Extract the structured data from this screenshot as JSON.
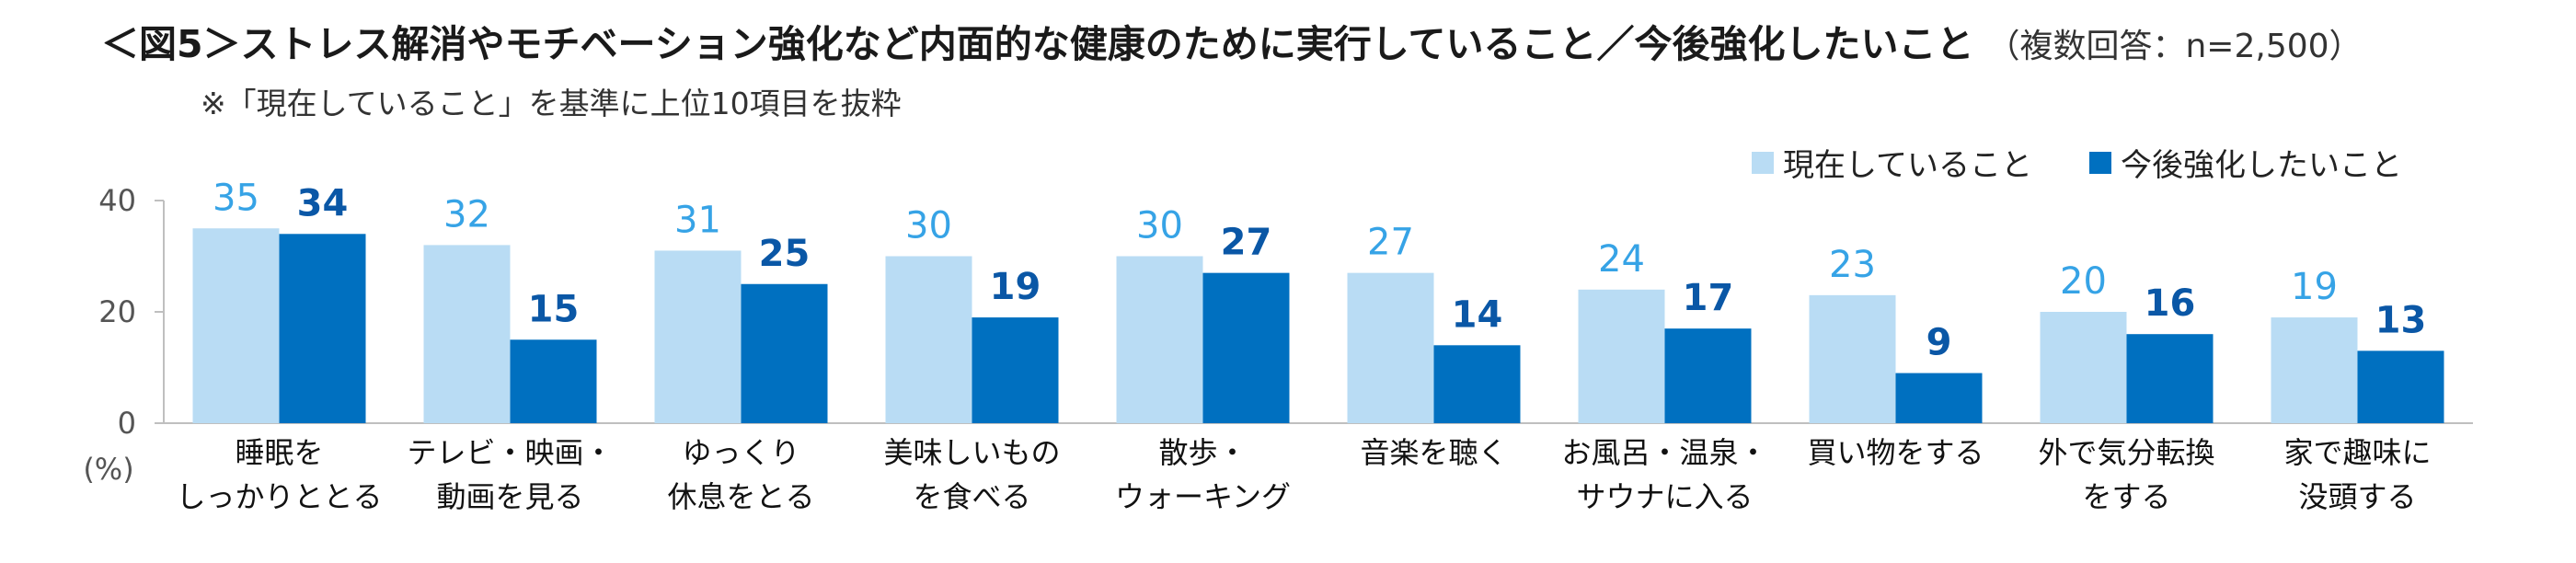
{
  "header": {
    "title": "＜図5＞ストレス解消やモチベーション強化など内面的な健康のために実行していること／今後強化したいこと",
    "sample": "（複数回答：n=2,500）",
    "note": "※「現在していること」を基準に上位10項目を抜粋"
  },
  "colors": {
    "current": "#b9dcf4",
    "future": "#0070c0",
    "current_label": "#36a3e6",
    "future_label": "#0a57a6",
    "axis": "#bfbfbf"
  },
  "chart_data": {
    "type": "bar",
    "title": "＜図5＞ストレス解消やモチベーション強化など内面的な健康のために実行していること／今後強化したいこと",
    "ylabel": "(%)",
    "ylim": [
      0,
      40
    ],
    "yticks": [
      "0",
      "20",
      "40"
    ],
    "grid": false,
    "legend_position": "top-right",
    "categories": [
      [
        "睡眠を",
        "しっかりととる"
      ],
      [
        "テレビ・映画・",
        "動画を見る"
      ],
      [
        "ゆっくり",
        "休息をとる"
      ],
      [
        "美味しいもの",
        "を食べる"
      ],
      [
        "散歩・",
        "ウォーキング"
      ],
      [
        "音楽を聴く"
      ],
      [
        "お風呂・温泉・",
        "サウナに入る"
      ],
      [
        "買い物をする"
      ],
      [
        "外で気分転換",
        "をする"
      ],
      [
        "家で趣味に",
        "没頭する"
      ]
    ],
    "series": [
      {
        "name": "現在していること",
        "values": [
          35,
          32,
          31,
          30,
          30,
          27,
          24,
          23,
          20,
          19
        ]
      },
      {
        "name": "今後強化したいこと",
        "values": [
          34,
          15,
          25,
          19,
          27,
          14,
          17,
          9,
          16,
          13
        ]
      }
    ]
  }
}
